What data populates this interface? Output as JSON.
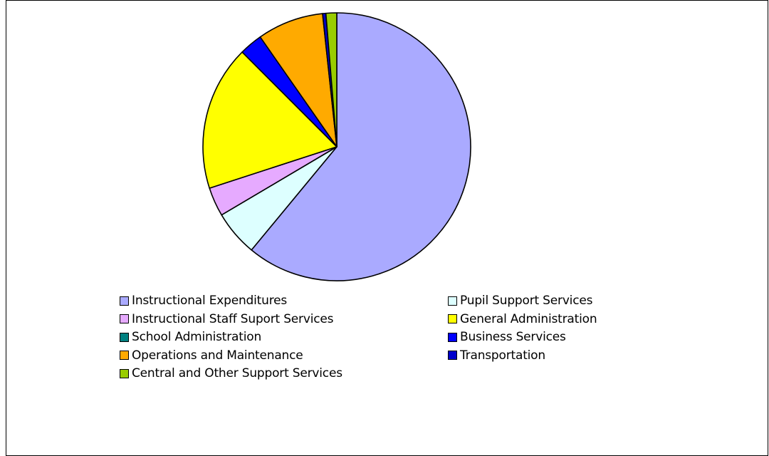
{
  "chart_data": {
    "type": "pie",
    "title": "",
    "start_angle_deg": 0,
    "direction": "clockwise",
    "slices": [
      {
        "label": "Instructional Expenditures",
        "value": 61.0,
        "color": "#AAAAFF"
      },
      {
        "label": "Pupil Support Services",
        "value": 5.5,
        "color": "#DDFFFF"
      },
      {
        "label": "Instructional Staff Suport Services",
        "value": 3.5,
        "color": "#E6AAFF"
      },
      {
        "label": "General Administration",
        "value": 17.5,
        "color": "#FFFF00"
      },
      {
        "label": "School Administration",
        "value": 0.0,
        "color": "#008080"
      },
      {
        "label": "Business Services",
        "value": 2.8,
        "color": "#0000FF"
      },
      {
        "label": "Operations and Maintenance",
        "value": 8.0,
        "color": "#FFAA00"
      },
      {
        "label": "Transportation",
        "value": 0.4,
        "color": "#0000CC"
      },
      {
        "label": "Central and Other Support Services",
        "value": 1.3,
        "color": "#99CC00"
      }
    ],
    "legend_position": "bottom"
  }
}
